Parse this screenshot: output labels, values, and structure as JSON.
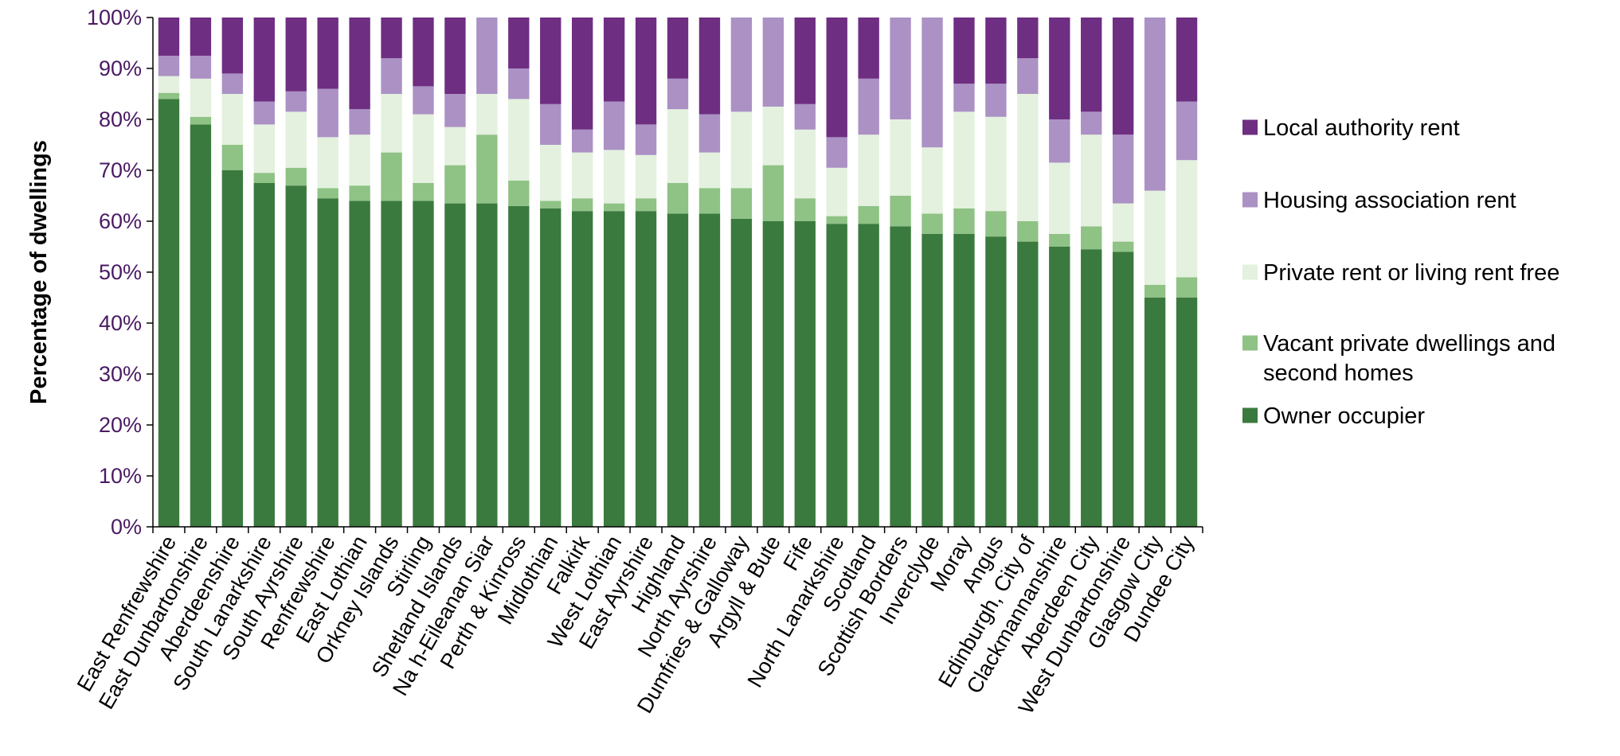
{
  "chart_data": {
    "type": "bar",
    "stacked": true,
    "title": "",
    "xlabel": "",
    "ylabel": "Percentage of dwellings",
    "ylim": [
      0,
      100
    ],
    "y_ticks": [
      "0%",
      "10%",
      "20%",
      "30%",
      "40%",
      "50%",
      "60%",
      "70%",
      "80%",
      "90%",
      "100%"
    ],
    "legend_position": "right",
    "categories": [
      "East Renfrewshire",
      "East Dunbartonshire",
      "Aberdeenshire",
      "South Lanarkshire",
      "South Ayrshire",
      "Renfrewshire",
      "East Lothian",
      "Orkney Islands",
      "Stirling",
      "Shetland Islands",
      "Na h-Eileanan Siar",
      "Perth & Kinross",
      "Midlothian",
      "Falkirk",
      "West Lothian",
      "East Ayrshire",
      "Highland",
      "North Ayrshire",
      "Dumfries & Galloway",
      "Argyll & Bute",
      "Fife",
      "North Lanarkshire",
      "Scotland",
      "Scottish Borders",
      "Inverclyde",
      "Moray",
      "Angus",
      "Edinburgh, City of",
      "Clackmannanshire",
      "Aberdeen City",
      "West Dunbartonshire",
      "Glasgow City",
      "Dundee City"
    ],
    "series": [
      {
        "name": "Owner occupier",
        "color": "#3b7a3e",
        "values": [
          84,
          79,
          70,
          67.5,
          67,
          64.5,
          64,
          64,
          64,
          63.5,
          63.5,
          63,
          62.5,
          62,
          62,
          62,
          61.5,
          61.5,
          60.5,
          60,
          60,
          59.5,
          59.5,
          59,
          57.5,
          57.5,
          57,
          56,
          55,
          54.5,
          54,
          45,
          45
        ]
      },
      {
        "name": "Vacant private dwellings and second homes",
        "color": "#8fc285",
        "values": [
          1.2,
          1.5,
          5,
          2,
          3.5,
          2,
          3,
          9.5,
          3.5,
          7.5,
          13.5,
          5,
          1.5,
          2.5,
          1.5,
          2.5,
          6,
          5,
          6,
          11,
          4.5,
          1.5,
          3.5,
          6,
          4,
          5,
          5,
          4,
          2.5,
          4.5,
          2,
          2.5,
          4
        ]
      },
      {
        "name": "Private rent or living rent free",
        "color": "#e3f1de",
        "values": [
          3.3,
          7.5,
          10,
          9.5,
          11,
          10,
          10,
          11.5,
          13.5,
          7.5,
          8,
          16,
          11,
          9,
          10.5,
          8.5,
          14.5,
          7,
          15,
          11.5,
          13.5,
          9.5,
          14,
          15,
          13,
          19,
          18.5,
          25,
          14,
          18,
          7.5,
          18.5,
          23
        ]
      },
      {
        "name": "Housing association rent",
        "color": "#ab91c4",
        "values": [
          4,
          4.5,
          4,
          4.5,
          4,
          9.5,
          5,
          7,
          5.5,
          6.5,
          15,
          6,
          8,
          4.5,
          9.5,
          6,
          6,
          7.5,
          18.5,
          17.5,
          5,
          6,
          11,
          20,
          25.5,
          5.5,
          6.5,
          7,
          8.5,
          4.5,
          13.5,
          34,
          11.5
        ]
      },
      {
        "name": "Local authority rent",
        "color": "#6e2e81",
        "values": [
          7.5,
          7.5,
          11,
          16.5,
          14.5,
          14,
          18,
          8,
          13.5,
          15,
          0,
          10,
          17,
          22,
          16.5,
          21,
          12,
          19,
          0,
          0,
          17,
          23.5,
          12,
          0,
          0,
          13,
          13,
          8,
          20,
          18.5,
          23,
          0,
          16.5
        ]
      }
    ],
    "legend_order": [
      "Local authority rent",
      "Housing association rent",
      "Private rent or living rent free",
      "Vacant private dwellings and\nsecond homes",
      "Owner occupier"
    ]
  }
}
